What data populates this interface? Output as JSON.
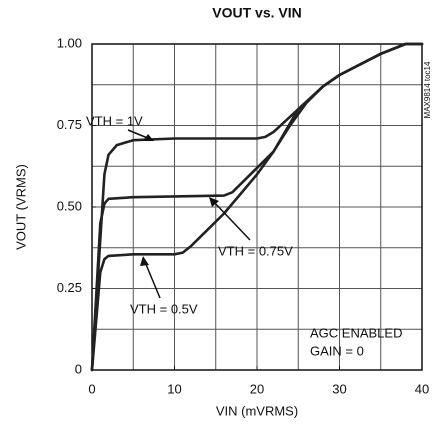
{
  "chart_data": {
    "type": "line",
    "title": "VOUT vs. VIN",
    "x_label": "VIN (mVRMS)",
    "y_label": "VOUT (VRMS)",
    "side_note": "MAX9814 toc14",
    "annotations": [
      "VTH = 1V",
      "VTH = 0.75V",
      "VTH = 0.5V",
      "AGC ENABLED",
      "GAIN = 0"
    ],
    "xlim": [
      0,
      40
    ],
    "ylim": [
      0,
      1
    ],
    "xticks": [
      0,
      10,
      20,
      30,
      40
    ],
    "yticks": [
      0,
      {
        "value": 0.25,
        "label": "0.25"
      },
      {
        "value": 0.5,
        "label": "0.50"
      },
      {
        "value": 0.75,
        "label": "0.75"
      },
      {
        "value": 1,
        "label": "1.00"
      }
    ],
    "xgrid": [
      5,
      10,
      15,
      20,
      25,
      30,
      35
    ],
    "ygrid": [
      0.125,
      0.25,
      0.375,
      0.5,
      0.625,
      0.75,
      0.875
    ],
    "grid": true,
    "color": "#222222",
    "series": [
      {
        "name": "VTH = 1V",
        "x": [
          0,
          1,
          1.5,
          2,
          3,
          5,
          10,
          20,
          21,
          22,
          25,
          28,
          30,
          35,
          38,
          40
        ],
        "values": [
          0,
          0.4,
          0.6,
          0.66,
          0.69,
          0.705,
          0.71,
          0.71,
          0.715,
          0.73,
          0.8,
          0.87,
          0.905,
          0.97,
          1.0,
          1.0
        ]
      },
      {
        "name": "VTH = 0.75V",
        "x": [
          0,
          1,
          1.5,
          2,
          5,
          16,
          17,
          18,
          20,
          22,
          25,
          28,
          30,
          35,
          38,
          40
        ],
        "values": [
          0,
          0.45,
          0.51,
          0.525,
          0.53,
          0.535,
          0.545,
          0.57,
          0.62,
          0.67,
          0.8,
          0.87,
          0.905,
          0.97,
          1.0,
          1.0
        ]
      },
      {
        "name": "VTH = 0.5V",
        "x": [
          0,
          1,
          1.5,
          2,
          5,
          10,
          11,
          12,
          14,
          16,
          18,
          20,
          22,
          24,
          26,
          28,
          30,
          35,
          38,
          40
        ],
        "values": [
          0,
          0.3,
          0.34,
          0.35,
          0.355,
          0.355,
          0.36,
          0.38,
          0.43,
          0.48,
          0.54,
          0.6,
          0.67,
          0.75,
          0.82,
          0.87,
          0.905,
          0.97,
          1.0,
          1.0
        ]
      }
    ]
  }
}
